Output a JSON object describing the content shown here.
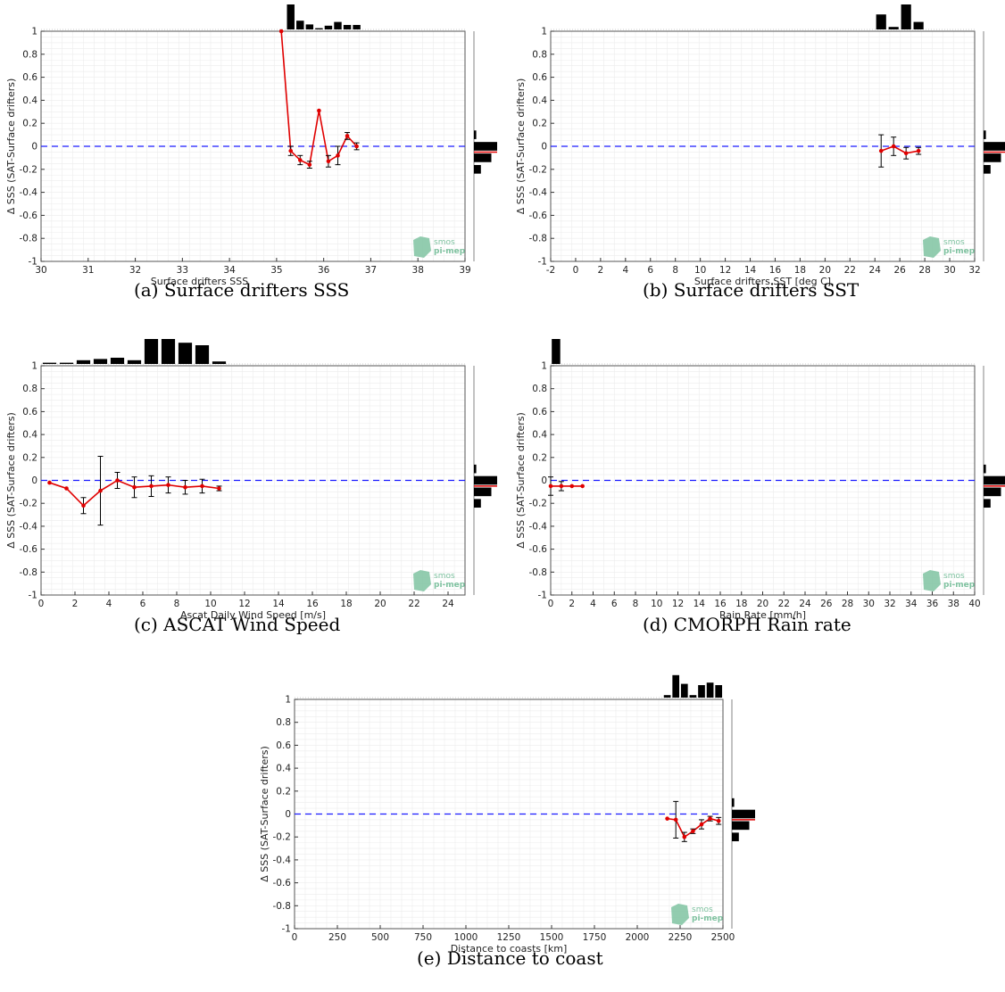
{
  "figure": {
    "logo_text_line1": "smos",
    "logo_text_line2": "pi-mep"
  },
  "chart_data": [
    {
      "type": "line",
      "caption": "(a) Surface drifters SSS",
      "xlabel": "Surface drifters SSS",
      "ylabel": "Δ SSS (SAT-Surface drifters)",
      "xlim": [
        30,
        39
      ],
      "ylim": [
        -1,
        1
      ],
      "xticks": [
        30,
        31,
        32,
        33,
        34,
        35,
        36,
        37,
        38,
        39
      ],
      "yticks": [
        -1,
        -0.8,
        -0.6,
        -0.4,
        -0.2,
        0,
        0.2,
        0.4,
        0.6,
        0.8,
        1
      ],
      "zero_line": 0,
      "grid": true,
      "series": [
        {
          "x": [
            35.1,
            35.3,
            35.5,
            35.7,
            35.9,
            36.1,
            36.3,
            36.5,
            36.7
          ],
          "y": [
            1.0,
            -0.04,
            -0.12,
            -0.16,
            0.31,
            -0.13,
            -0.08,
            0.09,
            0.0
          ],
          "err": [
            0,
            0.04,
            0.04,
            0.03,
            0.0,
            0.05,
            0.08,
            0.03,
            0.03
          ],
          "color": "#e00000"
        }
      ],
      "top_hist": {
        "centers": [
          35.3,
          35.5,
          35.7,
          35.9,
          36.1,
          36.3,
          36.5,
          36.7
        ],
        "heights": [
          1.0,
          0.35,
          0.2,
          0.05,
          0.15,
          0.3,
          0.18,
          0.18
        ]
      },
      "right_hist": {
        "centers": [
          0.1,
          0,
          -0.1,
          -0.2
        ],
        "heights": [
          0.1,
          1.0,
          0.75,
          0.3
        ],
        "mean": -0.05
      }
    },
    {
      "type": "line",
      "caption": "(b) Surface drifters SST",
      "xlabel": "Surface drifters SST [deg C]",
      "ylabel": "Δ SSS (SAT-Surface drifters)",
      "xlim": [
        -2,
        32
      ],
      "ylim": [
        -1,
        1
      ],
      "xticks": [
        -2,
        0,
        2,
        4,
        6,
        8,
        10,
        12,
        14,
        16,
        18,
        20,
        22,
        24,
        26,
        28,
        30,
        32
      ],
      "yticks": [
        -1,
        -0.8,
        -0.6,
        -0.4,
        -0.2,
        0,
        0.2,
        0.4,
        0.6,
        0.8,
        1
      ],
      "zero_line": 0,
      "grid": true,
      "series": [
        {
          "x": [
            24.5,
            25.5,
            26.5,
            27.5
          ],
          "y": [
            -0.04,
            0.0,
            -0.06,
            -0.04
          ],
          "err": [
            0.14,
            0.08,
            0.05,
            0.03
          ],
          "color": "#e00000"
        }
      ],
      "top_hist": {
        "centers": [
          24.5,
          25.5,
          26.5,
          27.5
        ],
        "heights": [
          0.6,
          0.1,
          1.0,
          0.3
        ]
      },
      "right_hist": {
        "centers": [
          0.1,
          0,
          -0.1,
          -0.2
        ],
        "heights": [
          0.1,
          1.0,
          0.75,
          0.3
        ],
        "mean": -0.05
      }
    },
    {
      "type": "line",
      "caption": "(c) ASCAT Wind Speed",
      "xlabel": "Ascat Daily Wind Speed [m/s]",
      "ylabel": "Δ SSS (SAT-Surface drifters)",
      "xlim": [
        0,
        25
      ],
      "ylim": [
        -1,
        1
      ],
      "xticks": [
        0,
        2,
        4,
        6,
        8,
        10,
        12,
        14,
        16,
        18,
        20,
        22,
        24
      ],
      "yticks": [
        -1,
        -0.8,
        -0.6,
        -0.4,
        -0.2,
        0,
        0.2,
        0.4,
        0.6,
        0.8,
        1
      ],
      "zero_line": 0,
      "grid": true,
      "series": [
        {
          "x": [
            0.5,
            1.5,
            2.5,
            3.5,
            4.5,
            5.5,
            6.5,
            7.5,
            8.5,
            9.5,
            10.5
          ],
          "y": [
            -0.02,
            -0.07,
            -0.22,
            -0.09,
            0.0,
            -0.06,
            -0.05,
            -0.04,
            -0.06,
            -0.05,
            -0.07
          ],
          "err": [
            0.0,
            0.0,
            0.07,
            0.3,
            0.07,
            0.09,
            0.09,
            0.07,
            0.06,
            0.06,
            0.02
          ],
          "color": "#e00000"
        }
      ],
      "top_hist": {
        "centers": [
          0.5,
          1.5,
          2.5,
          3.5,
          4.5,
          5.5,
          6.5,
          7.5,
          8.5,
          9.5,
          10.5
        ],
        "heights": [
          0.05,
          0.05,
          0.15,
          0.2,
          0.25,
          0.15,
          1.0,
          1.0,
          0.85,
          0.75,
          0.1
        ]
      },
      "right_hist": {
        "centers": [
          0.1,
          0,
          -0.1,
          -0.2
        ],
        "heights": [
          0.1,
          1.0,
          0.75,
          0.3
        ],
        "mean": -0.05
      }
    },
    {
      "type": "line",
      "caption": "(d) CMORPH Rain rate",
      "xlabel": "Rain Rate [mm/h]",
      "ylabel": "Δ SSS (SAT-Surface drifters)",
      "xlim": [
        0,
        40
      ],
      "ylim": [
        -1,
        1
      ],
      "xticks": [
        0,
        2,
        4,
        6,
        8,
        10,
        12,
        14,
        16,
        18,
        20,
        22,
        24,
        26,
        28,
        30,
        32,
        34,
        36,
        38,
        40
      ],
      "yticks": [
        -1,
        -0.8,
        -0.6,
        -0.4,
        -0.2,
        0,
        0.2,
        0.4,
        0.6,
        0.8,
        1
      ],
      "zero_line": 0,
      "grid": true,
      "series": [
        {
          "x": [
            0,
            1,
            2,
            3
          ],
          "y": [
            -0.05,
            -0.05,
            -0.05,
            -0.05
          ],
          "err": [
            0.08,
            0.04,
            0.0,
            0.0
          ],
          "color": "#e00000"
        }
      ],
      "top_hist": {
        "centers": [
          0.5
        ],
        "heights": [
          1.0
        ]
      },
      "right_hist": {
        "centers": [
          0.1,
          0,
          -0.1,
          -0.2
        ],
        "heights": [
          0.1,
          1.0,
          0.75,
          0.3
        ],
        "mean": -0.05
      }
    },
    {
      "type": "line",
      "caption": "(e) Distance to coast",
      "xlabel": "Distance to coasts [km]",
      "ylabel": "Δ SSS (SAT-Surface drifters)",
      "xlim": [
        0,
        2500
      ],
      "ylim": [
        -1,
        1
      ],
      "xticks": [
        0,
        250,
        500,
        750,
        1000,
        1250,
        1500,
        1750,
        2000,
        2250,
        2500
      ],
      "yticks": [
        -1,
        -0.8,
        -0.6,
        -0.4,
        -0.2,
        0,
        0.2,
        0.4,
        0.6,
        0.8,
        1
      ],
      "zero_line": 0,
      "grid": true,
      "series": [
        {
          "x": [
            2175,
            2225,
            2275,
            2325,
            2375,
            2425,
            2475
          ],
          "y": [
            -0.04,
            -0.05,
            -0.2,
            -0.15,
            -0.09,
            -0.04,
            -0.06
          ],
          "err": [
            0.0,
            0.16,
            0.04,
            0.02,
            0.04,
            0.02,
            0.03
          ],
          "color": "#e00000"
        }
      ],
      "top_hist": {
        "centers": [
          2175,
          2225,
          2275,
          2325,
          2375,
          2425,
          2475
        ],
        "heights": [
          0.1,
          0.9,
          0.55,
          0.1,
          0.5,
          0.6,
          0.5
        ]
      },
      "right_hist": {
        "centers": [
          0.1,
          0,
          -0.1,
          -0.2
        ],
        "heights": [
          0.1,
          1.0,
          0.75,
          0.3
        ],
        "mean": -0.05
      }
    }
  ]
}
